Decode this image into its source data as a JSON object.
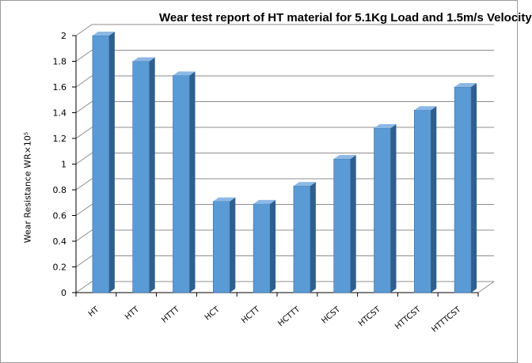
{
  "chart_data": {
    "type": "bar",
    "title": "Wear test report of HT material for 5.1Kg Load and 1.5m/s Velocity",
    "ylabel": "Wear Resistance  WR×10⁵",
    "xlabel": "",
    "categories": [
      "HT",
      "HTT",
      "HTTT",
      "HCT",
      "HCTT",
      "HCTTT",
      "HCST",
      "HTCST",
      "HTTCST",
      "HTTTCST"
    ],
    "values": [
      2.0,
      1.8,
      1.69,
      0.71,
      0.69,
      0.83,
      1.04,
      1.28,
      1.42,
      1.6
    ],
    "ylim": [
      0,
      2
    ],
    "yticks": [
      "0",
      "0.2",
      "0.4",
      "0.6",
      "0.8",
      "1",
      "1.2",
      "1.4",
      "1.6",
      "1.8",
      "2"
    ],
    "grid": true,
    "bar_style": "3d-column",
    "colors": {
      "bar_front": "#5b9bd5",
      "bar_side": "#2f5f8f",
      "bar_top": "#8db8e6",
      "grid": "#8c8c8c"
    }
  }
}
